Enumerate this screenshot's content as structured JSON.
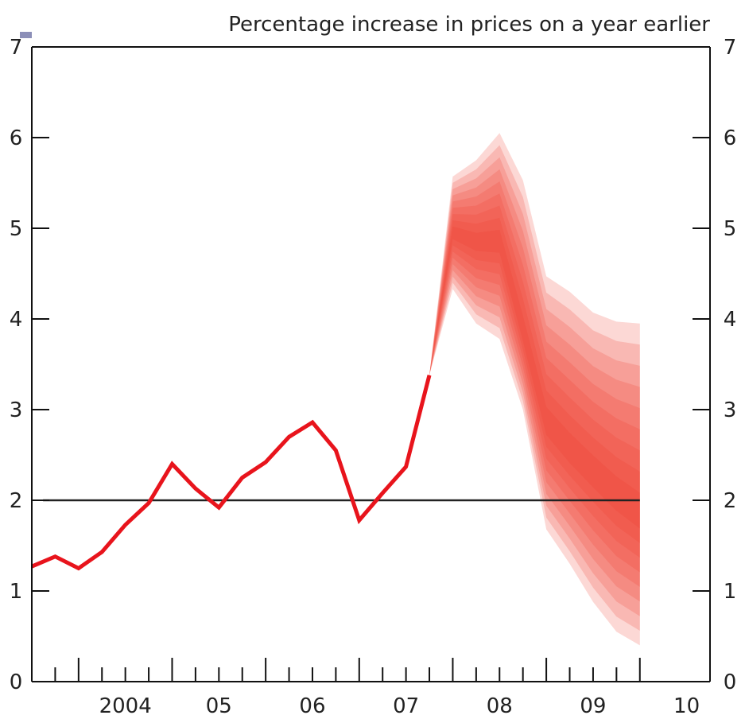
{
  "chart_data": {
    "type": "line",
    "subtitle": "Percentage increase in prices on a year earlier",
    "xlabel": "",
    "ylabel": "",
    "x_tick_labels": [
      "2004",
      "05",
      "06",
      "07",
      "08",
      "09",
      "10"
    ],
    "y_ticks": [
      0,
      1,
      2,
      3,
      4,
      5,
      6,
      7
    ],
    "ylim": [
      0,
      7
    ],
    "xlim": [
      2003.5,
      2010.75
    ],
    "grid": false,
    "colors": {
      "outturn": "#e8141c",
      "fan": "#ef3b2c",
      "target": "#222222",
      "axis": "#111111"
    },
    "reference_line": {
      "y": 2
    },
    "series": [
      {
        "values": [
          [
            2003.5,
            1.27
          ],
          [
            2003.75,
            1.38
          ],
          [
            2004.0,
            1.25
          ],
          [
            2004.25,
            1.43
          ],
          [
            2004.5,
            1.73
          ],
          [
            2004.75,
            1.97
          ],
          [
            2005.0,
            2.4
          ],
          [
            2005.25,
            2.13
          ],
          [
            2005.5,
            1.92
          ],
          [
            2005.75,
            2.25
          ],
          [
            2006.0,
            2.42
          ],
          [
            2006.25,
            2.7
          ],
          [
            2006.5,
            2.86
          ],
          [
            2006.75,
            2.55
          ],
          [
            2007.0,
            1.78
          ],
          [
            2007.25,
            2.08
          ],
          [
            2007.5,
            2.37
          ],
          [
            2007.75,
            3.38
          ]
        ]
      }
    ],
    "fan": {
      "x": [
        2007.75,
        2008.0,
        2008.25,
        2008.5,
        2008.75,
        2009.0,
        2009.25,
        2009.5,
        2009.75,
        2010.0
      ],
      "median": [
        3.38,
        4.95,
        4.85,
        4.85,
        3.85,
        2.85,
        2.55,
        2.3,
        2.05,
        1.85
      ],
      "lower90": [
        3.38,
        4.33,
        3.95,
        3.78,
        3.0,
        1.68,
        1.3,
        0.88,
        0.55,
        0.4
      ],
      "upper90": [
        3.38,
        5.57,
        5.75,
        6.05,
        5.53,
        4.47,
        4.3,
        4.07,
        3.97,
        3.95
      ]
    }
  }
}
